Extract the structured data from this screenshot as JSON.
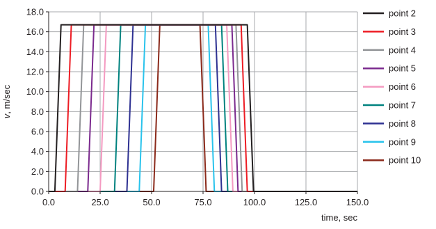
{
  "chart_data": {
    "type": "line",
    "xlabel": "time, sec",
    "ylabel_italic": "v",
    "ylabel_rest": ", m/sec",
    "xlim": [
      0,
      150
    ],
    "ylim": [
      0,
      18
    ],
    "grid": true,
    "legend_position": "right",
    "x_ticks": [
      0,
      25,
      50,
      75,
      100,
      125,
      150
    ],
    "x_tick_labels": [
      "0.0",
      "25.0",
      "50.0",
      "75.0",
      "100.0",
      "125.0",
      "150.0"
    ],
    "y_ticks": [
      0,
      2,
      4,
      6,
      8,
      10,
      12,
      14,
      16,
      18
    ],
    "y_tick_labels": [
      "0.0",
      "2.0",
      "4.0",
      "6.0",
      "8.0",
      "10.0",
      "12.0",
      "14.0",
      "16.0",
      "18.0"
    ],
    "series": [
      {
        "name": "point 2",
        "color": "#231f20",
        "x": [
          0,
          3,
          6,
          96.5,
          99.5,
          150
        ],
        "y": [
          0,
          0,
          16.7,
          16.7,
          0,
          0
        ]
      },
      {
        "name": "point 3",
        "color": "#ed1c24",
        "x": [
          0,
          8,
          11,
          93.5,
          96.5,
          150
        ],
        "y": [
          0,
          0,
          16.7,
          16.7,
          0,
          0
        ]
      },
      {
        "name": "point 4",
        "color": "#939598",
        "x": [
          0,
          14,
          17,
          91,
          94,
          150
        ],
        "y": [
          0,
          0,
          16.7,
          16.7,
          0,
          0
        ]
      },
      {
        "name": "point 5",
        "color": "#7b2a8e",
        "x": [
          0,
          19,
          22,
          89,
          92,
          150
        ],
        "y": [
          0,
          0,
          16.7,
          16.7,
          0,
          0
        ]
      },
      {
        "name": "point 6",
        "color": "#f49ac1",
        "x": [
          0,
          25,
          28,
          86.5,
          89.5,
          150
        ],
        "y": [
          0,
          0,
          16.7,
          16.7,
          0,
          0
        ]
      },
      {
        "name": "point 7",
        "color": "#00827f",
        "x": [
          0,
          32,
          35,
          84,
          87,
          150
        ],
        "y": [
          0,
          0,
          16.7,
          16.7,
          0,
          0
        ]
      },
      {
        "name": "point 8",
        "color": "#2e3192",
        "x": [
          0,
          38,
          41,
          81,
          84,
          150
        ],
        "y": [
          0,
          0,
          16.7,
          16.7,
          0,
          0
        ]
      },
      {
        "name": "point 9",
        "color": "#29c3ec",
        "x": [
          0,
          44,
          47,
          77.5,
          80.5,
          150
        ],
        "y": [
          0,
          0,
          16.7,
          16.7,
          0,
          0
        ]
      },
      {
        "name": "point 10",
        "color": "#8b2a1b",
        "x": [
          0,
          51,
          54,
          73.5,
          76.5,
          150
        ],
        "y": [
          0,
          0,
          16.7,
          16.7,
          0,
          0
        ]
      }
    ]
  }
}
